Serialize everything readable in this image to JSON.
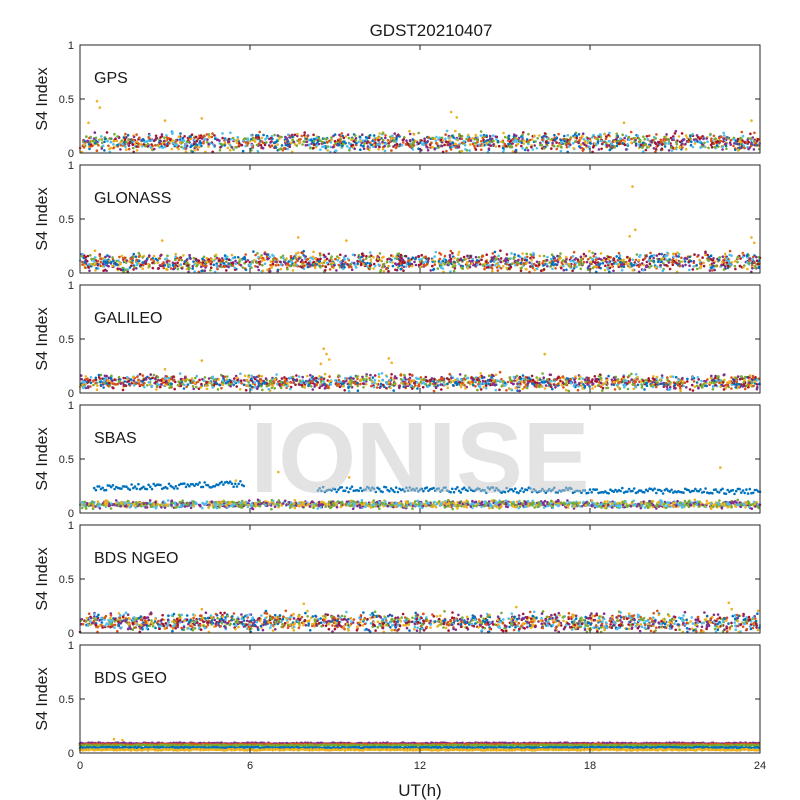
{
  "figure": {
    "title": "GDST20210407",
    "xlabel": "UT(h)",
    "ylabel": "S4 Index",
    "watermark": "IONISE",
    "x_tick_labels": [
      "0",
      "6",
      "12",
      "18",
      "24"
    ],
    "y_tick_labels": [
      "0",
      "0.5",
      "1"
    ]
  },
  "chart_data": [
    {
      "type": "scatter",
      "panel": "GPS",
      "xlim": [
        0,
        24
      ],
      "ylim": [
        0,
        1
      ],
      "x_ticks": [
        0,
        6,
        12,
        18,
        24
      ],
      "y_ticks": [
        0,
        0.5,
        1
      ],
      "base_s4": 0.1,
      "noise": 0.05,
      "colors": [
        "#0072BD",
        "#D95319",
        "#EDB120",
        "#7E2F8E",
        "#77AC30",
        "#4DBEEE",
        "#A2142F"
      ],
      "highlights": [
        {
          "x": 0.6,
          "y": 0.48
        },
        {
          "x": 0.7,
          "y": 0.42
        },
        {
          "x": 0.3,
          "y": 0.28
        },
        {
          "x": 3.0,
          "y": 0.3
        },
        {
          "x": 4.3,
          "y": 0.32
        },
        {
          "x": 13.1,
          "y": 0.38
        },
        {
          "x": 13.3,
          "y": 0.33
        },
        {
          "x": 19.2,
          "y": 0.28
        },
        {
          "x": 23.7,
          "y": 0.3
        }
      ]
    },
    {
      "type": "scatter",
      "panel": "GLONASS",
      "xlim": [
        0,
        24
      ],
      "ylim": [
        0,
        1
      ],
      "x_ticks": [
        0,
        6,
        12,
        18,
        24
      ],
      "y_ticks": [
        0,
        0.5,
        1
      ],
      "base_s4": 0.1,
      "noise": 0.05,
      "colors": [
        "#0072BD",
        "#D95319",
        "#EDB120",
        "#7E2F8E",
        "#77AC30",
        "#4DBEEE",
        "#A2142F"
      ],
      "highlights": [
        {
          "x": 19.5,
          "y": 0.8
        },
        {
          "x": 19.6,
          "y": 0.4
        },
        {
          "x": 19.4,
          "y": 0.34
        },
        {
          "x": 7.7,
          "y": 0.33
        },
        {
          "x": 9.4,
          "y": 0.3
        },
        {
          "x": 2.9,
          "y": 0.3
        },
        {
          "x": 23.7,
          "y": 0.33
        },
        {
          "x": 23.8,
          "y": 0.28
        }
      ]
    },
    {
      "type": "scatter",
      "panel": "GALILEO",
      "xlim": [
        0,
        24
      ],
      "ylim": [
        0,
        1
      ],
      "x_ticks": [
        0,
        6,
        12,
        18,
        24
      ],
      "y_ticks": [
        0,
        0.5,
        1
      ],
      "base_s4": 0.1,
      "noise": 0.04,
      "colors": [
        "#0072BD",
        "#D95319",
        "#EDB120",
        "#7E2F8E",
        "#77AC30",
        "#4DBEEE",
        "#A2142F"
      ],
      "highlights": [
        {
          "x": 8.6,
          "y": 0.41
        },
        {
          "x": 8.7,
          "y": 0.36
        },
        {
          "x": 8.8,
          "y": 0.31
        },
        {
          "x": 8.5,
          "y": 0.27
        },
        {
          "x": 10.9,
          "y": 0.32
        },
        {
          "x": 11.0,
          "y": 0.28
        },
        {
          "x": 16.4,
          "y": 0.36
        },
        {
          "x": 4.3,
          "y": 0.3
        },
        {
          "x": 3.0,
          "y": 0.22
        }
      ]
    },
    {
      "type": "scatter",
      "panel": "SBAS",
      "xlim": [
        0,
        24
      ],
      "ylim": [
        0,
        1
      ],
      "x_ticks": [
        0,
        6,
        12,
        18,
        24
      ],
      "y_ticks": [
        0,
        0.5,
        1
      ],
      "base_s4": 0.08,
      "noise": 0.02,
      "colors": [
        "#7E2F8E",
        "#77AC30",
        "#4DBEEE",
        "#EDB120"
      ],
      "track_segments": [
        {
          "x_start": 0.5,
          "x_end": 5.8,
          "y_start": 0.23,
          "y_end": 0.27,
          "color": "#0072BD"
        },
        {
          "x_start": 8.4,
          "x_end": 24,
          "y_start": 0.22,
          "y_end": 0.2,
          "color": "#0072BD"
        }
      ],
      "highlights": [
        {
          "x": 9.5,
          "y": 0.33
        },
        {
          "x": 22.6,
          "y": 0.42
        },
        {
          "x": 7.0,
          "y": 0.38
        },
        {
          "x": 5.5,
          "y": 0.3
        }
      ]
    },
    {
      "type": "scatter",
      "panel": "BDS NGEO",
      "xlim": [
        0,
        24
      ],
      "ylim": [
        0,
        1
      ],
      "x_ticks": [
        0,
        6,
        12,
        18,
        24
      ],
      "y_ticks": [
        0,
        0.5,
        1
      ],
      "base_s4": 0.1,
      "noise": 0.05,
      "colors": [
        "#0072BD",
        "#D95319",
        "#EDB120",
        "#7E2F8E",
        "#77AC30",
        "#4DBEEE",
        "#A2142F"
      ],
      "highlights": [
        {
          "x": 7.9,
          "y": 0.27
        },
        {
          "x": 15.4,
          "y": 0.24
        },
        {
          "x": 22.9,
          "y": 0.28
        },
        {
          "x": 23.0,
          "y": 0.22
        },
        {
          "x": 4.3,
          "y": 0.22
        }
      ]
    },
    {
      "type": "scatter",
      "panel": "BDS GEO",
      "xlim": [
        0,
        24
      ],
      "ylim": [
        0,
        1
      ],
      "x_ticks": [
        0,
        6,
        12,
        18,
        24
      ],
      "y_ticks": [
        0,
        0.5,
        1
      ],
      "lines": [
        {
          "y": 0.09,
          "color": "#7E2F8E"
        },
        {
          "y": 0.08,
          "color": "#D95319"
        },
        {
          "y": 0.07,
          "color": "#77AC30"
        },
        {
          "y": 0.05,
          "color": "#0072BD"
        },
        {
          "y": 0.03,
          "color": "#EDB120"
        }
      ],
      "highlights": [
        {
          "x": 1.2,
          "y": 0.13
        },
        {
          "x": 1.5,
          "y": 0.12
        }
      ]
    }
  ]
}
